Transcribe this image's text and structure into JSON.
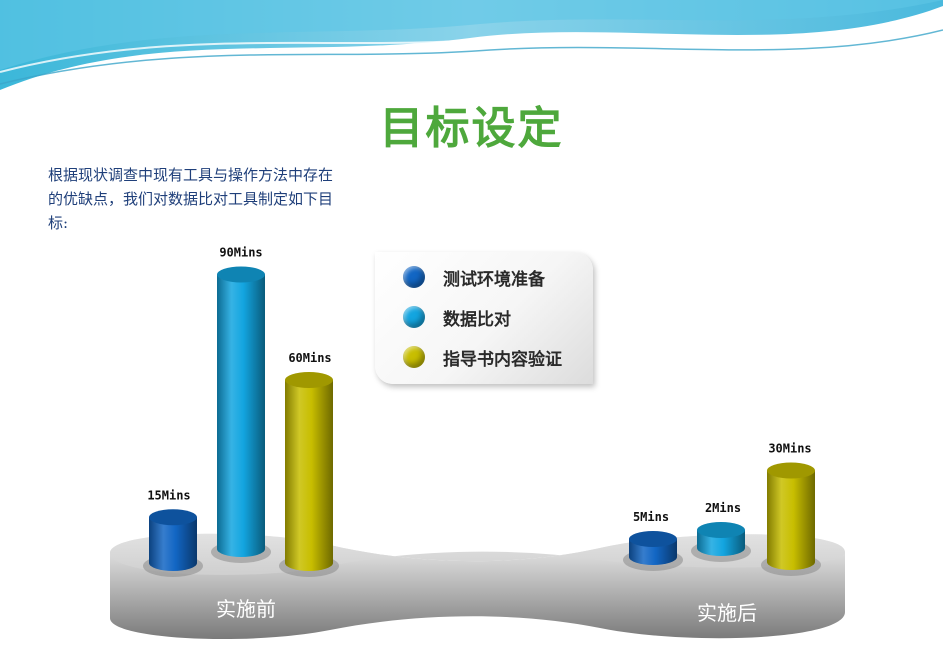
{
  "slide": {
    "title": "目标设定",
    "intro": "根据现状调查中现有工具与操作方法中存在的优缺点，我们对数据比对工具制定如下目标:"
  },
  "colors": {
    "title": "#4ea83c",
    "series": [
      "#1266c4",
      "#13a5e0",
      "#c8be00"
    ]
  },
  "chart_data": {
    "type": "bar",
    "categories": [
      "实施前",
      "实施后"
    ],
    "series": [
      {
        "name": "测试环境准备",
        "values": [
          15,
          5
        ],
        "labels": [
          "15Mins",
          "5Mins"
        ]
      },
      {
        "name": "数据比对",
        "values": [
          90,
          2
        ],
        "labels": [
          "90Mins",
          "2Mins"
        ]
      },
      {
        "name": "指导书内容验证",
        "values": [
          60,
          30
        ],
        "labels": [
          "60Mins",
          "30Mins"
        ]
      }
    ],
    "legend": "center"
  }
}
